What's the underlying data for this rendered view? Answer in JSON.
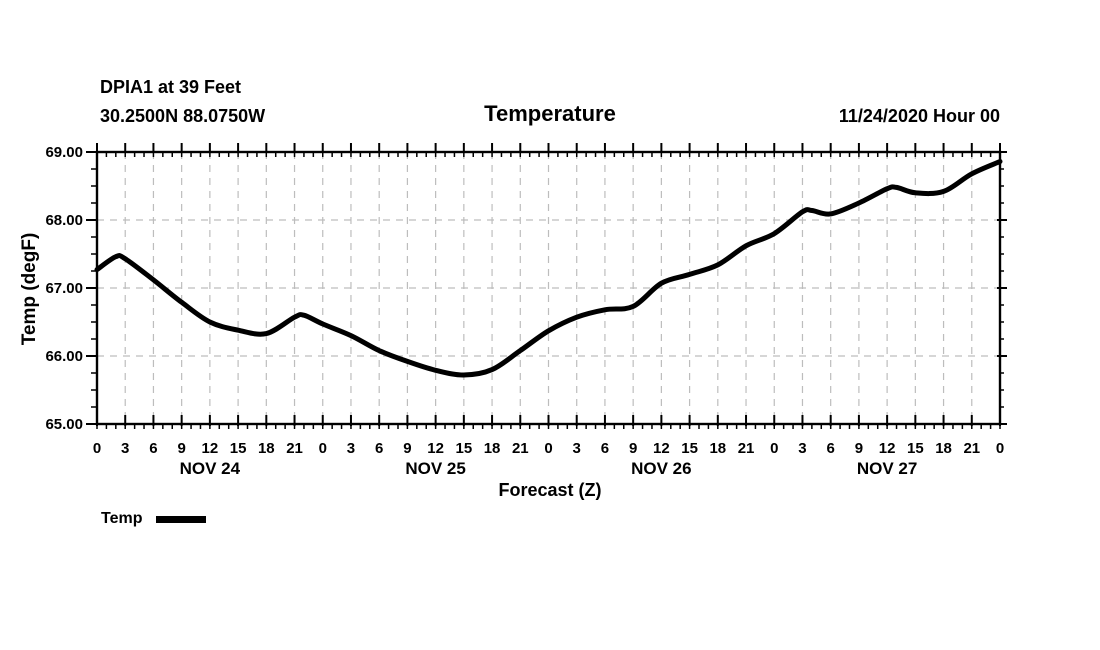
{
  "header": {
    "station_line1": "DPIA1 at 39 Feet",
    "station_line2": "30.2500N 88.0750W",
    "title": "Temperature",
    "run_time": "11/24/2020 Hour 00"
  },
  "colors": {
    "line": "#000000",
    "grid": "#bdbdbd",
    "background": "#ffffff",
    "text": "#000000"
  },
  "chart_data": {
    "type": "line",
    "title": "Temperature",
    "xlabel": "Forecast (Z)",
    "ylabel": "Temp (degF)",
    "ylim": [
      65,
      69
    ],
    "xlim_hours": [
      0,
      96
    ],
    "grid": true,
    "grid_style": "dashed",
    "y_ticks": [
      65,
      66,
      67,
      68,
      69
    ],
    "y_tick_labels": [
      "65.00",
      "66.00",
      "67.00",
      "68.00",
      "69.00"
    ],
    "y_minor_step": 0.25,
    "x_major_step_hours": 3,
    "x_minor_step_hours": 1,
    "x_tick_labels": [
      "0",
      "3",
      "6",
      "9",
      "12",
      "15",
      "18",
      "21",
      "0",
      "3",
      "6",
      "9",
      "12",
      "15",
      "18",
      "21",
      "0",
      "3",
      "6",
      "9",
      "12",
      "15",
      "18",
      "21",
      "0",
      "3",
      "6",
      "9",
      "12",
      "15",
      "18",
      "21",
      "0"
    ],
    "day_labels": [
      {
        "label": "NOV 24",
        "center_hour": 12
      },
      {
        "label": "NOV 25",
        "center_hour": 36
      },
      {
        "label": "NOV 26",
        "center_hour": 60
      },
      {
        "label": "NOV 27",
        "center_hour": 84
      }
    ],
    "legend": [
      {
        "label": "Temp",
        "color": "#000000"
      }
    ],
    "series": [
      {
        "name": "Temp",
        "color": "#000000",
        "points": [
          [
            0,
            67.27
          ],
          [
            2,
            67.46
          ],
          [
            3,
            67.43
          ],
          [
            6,
            67.12
          ],
          [
            9,
            66.79
          ],
          [
            12,
            66.5
          ],
          [
            15,
            66.38
          ],
          [
            18,
            66.33
          ],
          [
            21,
            66.57
          ],
          [
            22,
            66.6
          ],
          [
            24,
            66.47
          ],
          [
            27,
            66.3
          ],
          [
            30,
            66.08
          ],
          [
            33,
            65.92
          ],
          [
            36,
            65.79
          ],
          [
            39,
            65.72
          ],
          [
            42,
            65.8
          ],
          [
            45,
            66.08
          ],
          [
            48,
            66.37
          ],
          [
            51,
            66.57
          ],
          [
            54,
            66.68
          ],
          [
            57,
            66.73
          ],
          [
            60,
            67.07
          ],
          [
            63,
            67.2
          ],
          [
            66,
            67.34
          ],
          [
            69,
            67.62
          ],
          [
            72,
            67.8
          ],
          [
            75,
            68.12
          ],
          [
            76,
            68.14
          ],
          [
            78,
            68.09
          ],
          [
            81,
            68.25
          ],
          [
            84,
            68.46
          ],
          [
            85,
            68.48
          ],
          [
            87,
            68.4
          ],
          [
            90,
            68.42
          ],
          [
            93,
            68.68
          ],
          [
            96,
            68.86
          ]
        ]
      }
    ]
  }
}
